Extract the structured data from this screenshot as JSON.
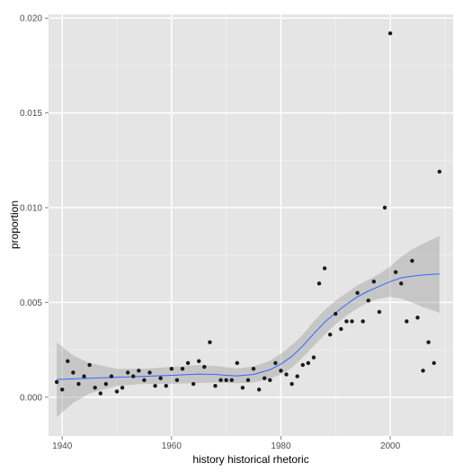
{
  "chart_data": {
    "type": "scatter",
    "title": "",
    "xlabel": "history historical rhetoric",
    "ylabel": "proportion",
    "xlim": [
      1937.5,
      2011.5
    ],
    "ylim": [
      -0.00205,
      0.0202
    ],
    "x_ticks": [
      1940,
      1960,
      1980,
      2000
    ],
    "x_tick_labels": [
      "1940",
      "1960",
      "1980",
      "2000"
    ],
    "y_ticks": [
      0.0,
      0.005,
      0.01,
      0.015,
      0.02
    ],
    "y_tick_labels": [
      "0.000",
      "0.005",
      "0.010",
      "0.015",
      "0.020"
    ],
    "grid": true,
    "legend": "none",
    "colors": {
      "panel": "#e5e5e5",
      "grid": "#ffffff",
      "points": "#1a1a1a",
      "smooth_line": "#3366ff",
      "ribbon": "#999999"
    },
    "series": [
      {
        "kind": "points",
        "x": [
          1939,
          1940,
          1941,
          1942,
          1943,
          1944,
          1945,
          1946,
          1947,
          1948,
          1949,
          1950,
          1951,
          1952,
          1953,
          1954,
          1955,
          1956,
          1957,
          1958,
          1959,
          1960,
          1961,
          1962,
          1963,
          1964,
          1965,
          1966,
          1967,
          1968,
          1969,
          1970,
          1971,
          1972,
          1973,
          1974,
          1975,
          1976,
          1977,
          1978,
          1979,
          1980,
          1981,
          1982,
          1983,
          1984,
          1985,
          1986,
          1987,
          1988,
          1989,
          1990,
          1991,
          1992,
          1993,
          1994,
          1995,
          1996,
          1997,
          1998,
          1999,
          2000,
          2001,
          2002,
          2003,
          2004,
          2005,
          2006,
          2007,
          2008,
          2009
        ],
        "y": [
          0.0008,
          0.0004,
          0.0019,
          0.0013,
          0.0007,
          0.0011,
          0.0017,
          0.0005,
          0.0002,
          0.0007,
          0.0011,
          0.0003,
          0.0005,
          0.0013,
          0.0011,
          0.0014,
          0.0009,
          0.0013,
          0.0006,
          0.001,
          0.0006,
          0.0015,
          0.0009,
          0.0015,
          0.0018,
          0.0007,
          0.0019,
          0.0016,
          0.0029,
          0.0006,
          0.0009,
          0.0009,
          0.0009,
          0.0018,
          0.0005,
          0.0009,
          0.0015,
          0.0004,
          0.001,
          0.0009,
          0.0018,
          0.0014,
          0.0012,
          0.0007,
          0.0011,
          0.0017,
          0.0018,
          0.0021,
          0.006,
          0.0068,
          0.0033,
          0.0044,
          0.0036,
          0.004,
          0.004,
          0.0055,
          0.004,
          0.0051,
          0.0061,
          0.0045,
          0.01,
          0.0192,
          0.0066,
          0.006,
          0.004,
          0.0072,
          0.0042,
          0.0014,
          0.0029,
          0.0018,
          0.0119
        ]
      },
      {
        "kind": "smooth",
        "x": [
          1939,
          1942,
          1945,
          1950,
          1955,
          1960,
          1965,
          1968,
          1970,
          1972,
          1975,
          1978,
          1980,
          1982,
          1984,
          1986,
          1988,
          1990,
          1992,
          1994,
          1996,
          1998,
          2000,
          2002,
          2004,
          2006,
          2009
        ],
        "y": [
          0.00093,
          0.00097,
          0.001,
          0.00105,
          0.0011,
          0.00115,
          0.00122,
          0.0012,
          0.00115,
          0.00112,
          0.0012,
          0.00145,
          0.00175,
          0.00215,
          0.0027,
          0.00335,
          0.00395,
          0.00445,
          0.0049,
          0.0053,
          0.0056,
          0.00585,
          0.0061,
          0.0063,
          0.00638,
          0.00645,
          0.0065
        ],
        "ymin": [
          -0.00105,
          -0.0003,
          0.0002,
          0.0006,
          0.0007,
          0.0007,
          0.00075,
          0.00078,
          0.00075,
          0.00073,
          0.00078,
          0.00098,
          0.0012,
          0.00155,
          0.0021,
          0.0027,
          0.0033,
          0.00385,
          0.0043,
          0.0047,
          0.005,
          0.0052,
          0.0053,
          0.0052,
          0.005,
          0.00475,
          0.00445
        ],
        "ymax": [
          0.0029,
          0.0022,
          0.0018,
          0.0015,
          0.0015,
          0.0016,
          0.0017,
          0.00165,
          0.00158,
          0.00152,
          0.00162,
          0.00192,
          0.0023,
          0.00275,
          0.0033,
          0.004,
          0.0046,
          0.0051,
          0.0055,
          0.0059,
          0.0062,
          0.0065,
          0.0069,
          0.0074,
          0.0078,
          0.0081,
          0.0085
        ]
      }
    ]
  }
}
